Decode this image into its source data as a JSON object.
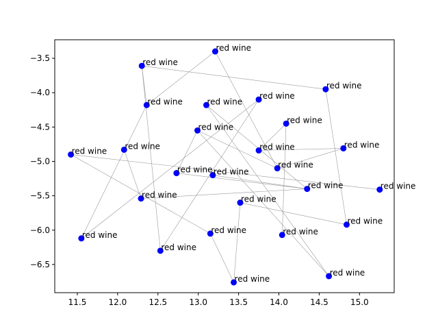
{
  "chart_data": {
    "type": "scatter",
    "title": "",
    "xlabel": "",
    "ylabel": "",
    "xlim": [
      11.22,
      15.43
    ],
    "ylim": [
      -6.91,
      -3.23
    ],
    "grid": false,
    "legend": "none",
    "point_color": "#0000ff",
    "line_color": "#999999",
    "xticks": [
      "11.5",
      "12.0",
      "12.5",
      "13.0",
      "13.5",
      "14.0",
      "14.5",
      "15.0"
    ],
    "yticks": [
      "-3.5",
      "-4.0",
      "-4.5",
      "-5.0",
      "-5.5",
      "-6.0",
      "-6.5"
    ],
    "points": [
      {
        "x": 13.21,
        "y": -3.4,
        "label": "red wine"
      },
      {
        "x": 12.3,
        "y": -3.61,
        "label": "red wine"
      },
      {
        "x": 14.58,
        "y": -3.95,
        "label": "red wine"
      },
      {
        "x": 13.75,
        "y": -4.1,
        "label": "red wine"
      },
      {
        "x": 12.36,
        "y": -4.18,
        "label": "red wine"
      },
      {
        "x": 13.1,
        "y": -4.18,
        "label": "red wine"
      },
      {
        "x": 14.09,
        "y": -4.45,
        "label": "red wine"
      },
      {
        "x": 12.99,
        "y": -4.55,
        "label": "red wine"
      },
      {
        "x": 14.8,
        "y": -4.81,
        "label": "red wine"
      },
      {
        "x": 12.08,
        "y": -4.83,
        "label": "red wine"
      },
      {
        "x": 13.75,
        "y": -4.84,
        "label": "red wine"
      },
      {
        "x": 11.42,
        "y": -4.9,
        "label": "red wine"
      },
      {
        "x": 13.98,
        "y": -5.1,
        "label": "red wine"
      },
      {
        "x": 12.73,
        "y": -5.17,
        "label": "red wine"
      },
      {
        "x": 13.18,
        "y": -5.2,
        "label": "red wine"
      },
      {
        "x": 14.35,
        "y": -5.4,
        "label": "red wine"
      },
      {
        "x": 15.25,
        "y": -5.41,
        "label": "red wine"
      },
      {
        "x": 12.29,
        "y": -5.54,
        "label": "red wine"
      },
      {
        "x": 13.52,
        "y": -5.6,
        "label": "red wine"
      },
      {
        "x": 14.84,
        "y": -5.92,
        "label": "red wine"
      },
      {
        "x": 13.15,
        "y": -6.05,
        "label": "red wine"
      },
      {
        "x": 14.04,
        "y": -6.07,
        "label": "red wine"
      },
      {
        "x": 11.55,
        "y": -6.12,
        "label": "red wine"
      },
      {
        "x": 12.53,
        "y": -6.3,
        "label": "red wine"
      },
      {
        "x": 14.62,
        "y": -6.67,
        "label": "red wine"
      },
      {
        "x": 13.44,
        "y": -6.76,
        "label": "red wine"
      }
    ],
    "edges": [
      [
        0,
        4
      ],
      [
        0,
        12
      ],
      [
        1,
        4
      ],
      [
        1,
        23
      ],
      [
        1,
        2
      ],
      [
        2,
        19
      ],
      [
        3,
        22
      ],
      [
        3,
        23
      ],
      [
        4,
        22
      ],
      [
        5,
        24
      ],
      [
        5,
        15
      ],
      [
        6,
        10
      ],
      [
        6,
        21
      ],
      [
        7,
        13
      ],
      [
        7,
        12
      ],
      [
        7,
        24
      ],
      [
        8,
        10
      ],
      [
        8,
        12
      ],
      [
        9,
        17
      ],
      [
        11,
        20
      ],
      [
        11,
        16
      ],
      [
        13,
        15
      ],
      [
        14,
        15
      ],
      [
        15,
        17
      ],
      [
        18,
        19
      ],
      [
        18,
        25
      ],
      [
        20,
        25
      ]
    ]
  }
}
